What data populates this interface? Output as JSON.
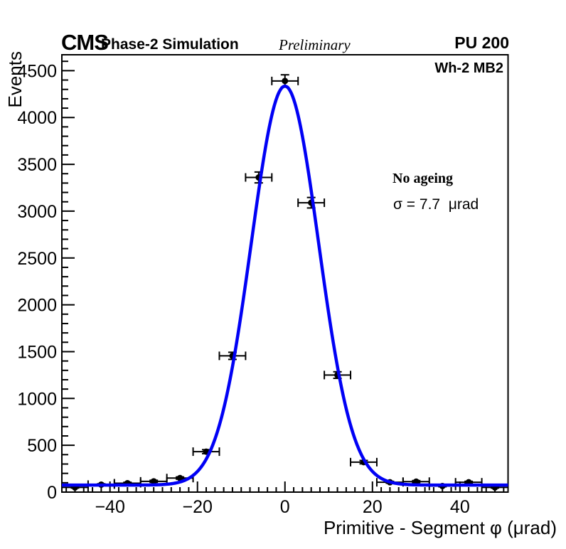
{
  "header": {
    "cms": "CMS",
    "experiment": "Phase-2 Simulation",
    "preliminary": "Preliminary",
    "pileup": "PU 200"
  },
  "plot_labels": {
    "region": "Wh-2 MB2",
    "ageing": "No ageing",
    "sigma": "σ = 7.7  μrad"
  },
  "chart_data": {
    "type": "scatter",
    "title": "",
    "xlabel": "Primitive - Segment φ (μrad)",
    "ylabel": "Events",
    "xlim": [
      -51,
      51
    ],
    "ylim": [
      0,
      4670
    ],
    "grid": false,
    "legend_position": "none",
    "xticks": {
      "values": [
        -40,
        -20,
        0,
        20,
        40
      ],
      "labels": [
        "−40",
        "−20",
        "0",
        "20",
        "40"
      ],
      "minor_step": 2
    },
    "yticks": {
      "values": [
        0,
        500,
        1000,
        1500,
        2000,
        2500,
        3000,
        3500,
        4000,
        4500
      ],
      "labels": [
        "0",
        "500",
        "1000",
        "1500",
        "2000",
        "2500",
        "3000",
        "3500",
        "4000",
        "4500"
      ],
      "minor_step": 100
    },
    "series": [
      {
        "name": "simulation-points",
        "type": "points",
        "color": "#000000",
        "marker_radius": 4.5,
        "x": [
          -48,
          -42,
          -36,
          -30,
          -24,
          -18,
          -12,
          -6,
          0,
          6,
          12,
          18,
          24,
          30,
          36,
          42,
          48
        ],
        "y": [
          50,
          80,
          95,
          115,
          150,
          432,
          1455,
          3360,
          4390,
          3090,
          1250,
          320,
          105,
          112,
          65,
          105,
          50
        ],
        "xerr": 3,
        "yerr": [
          7,
          9,
          10,
          11,
          12,
          21,
          38,
          58,
          66,
          56,
          35,
          18,
          10,
          11,
          8,
          10,
          7
        ]
      },
      {
        "name": "gaussian-fit",
        "type": "gaussian",
        "color": "#0101f5",
        "line_width": 4.5,
        "params": {
          "amplitude": 4260,
          "mean": 0,
          "sigma": 7.7,
          "constant": 75
        }
      }
    ]
  },
  "style": {
    "frame_color": "#000000",
    "background": "#ffffff",
    "tick_label_size": 25
  }
}
